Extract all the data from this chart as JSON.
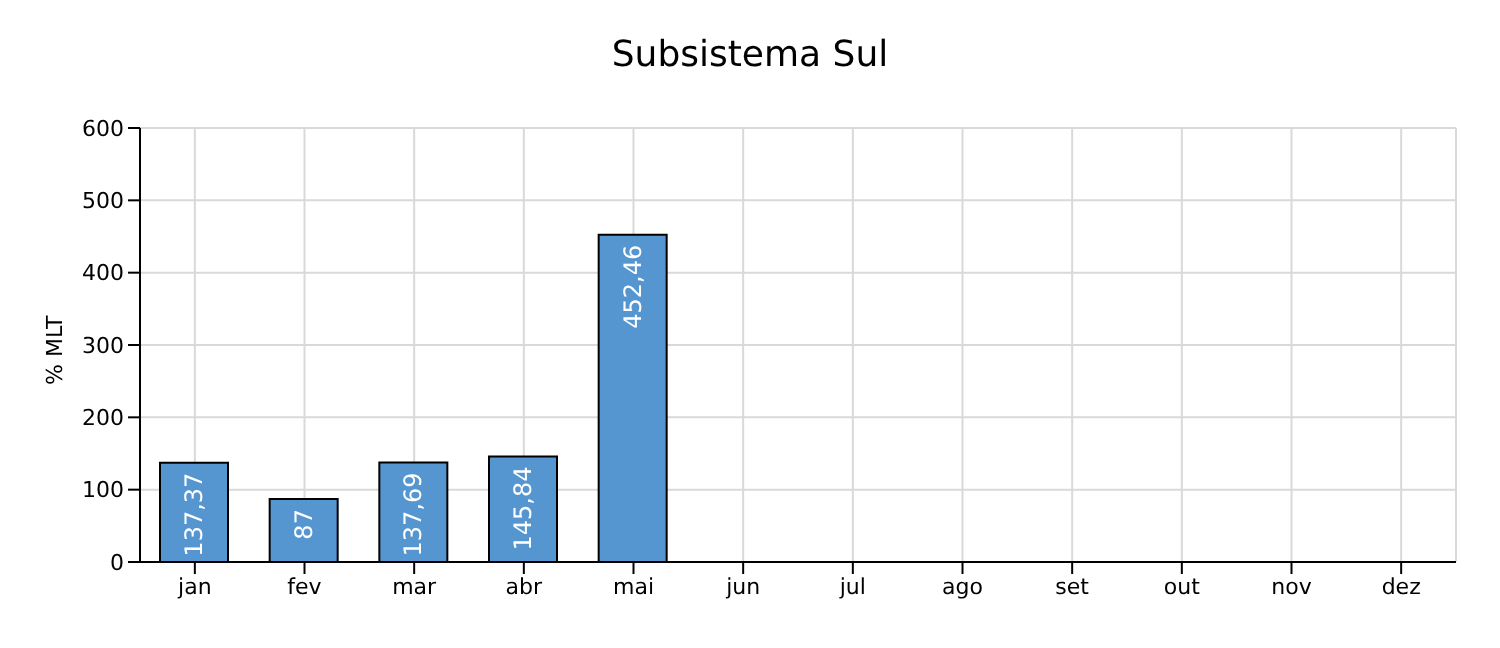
{
  "chart_data": {
    "type": "bar",
    "title": "Subsistema Sul",
    "ylabel": "% MLT",
    "categories": [
      "jan",
      "fev",
      "mar",
      "abr",
      "mai",
      "jun",
      "jul",
      "ago",
      "set",
      "out",
      "nov",
      "dez"
    ],
    "values": [
      137.37,
      87,
      137.69,
      145.84,
      452.46,
      null,
      null,
      null,
      null,
      null,
      null,
      null
    ],
    "value_labels": [
      "137,37",
      "87",
      "137,69",
      "145,84",
      "452,46",
      null,
      null,
      null,
      null,
      null,
      null,
      null
    ],
    "color": "#5596d0",
    "ylim": [
      0,
      600
    ],
    "yticks": [
      0,
      100,
      200,
      300,
      400,
      500,
      600
    ],
    "grid": true,
    "legend": false
  }
}
